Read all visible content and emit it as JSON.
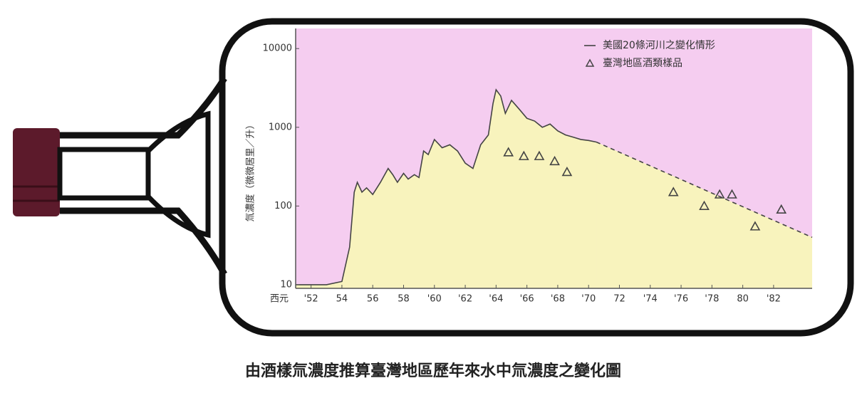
{
  "chart_data": {
    "type": "line",
    "title": "由酒樣氚濃度推算臺灣地區歷年來水中氚濃度之變化圖",
    "ylabel": "氚濃度（微微居里／升）",
    "xlabel": "西元",
    "xlim": [
      1951,
      1984.5
    ],
    "ylim": [
      9,
      18000
    ],
    "log_y": true,
    "xticks": [
      {
        "value": 1952,
        "label": "'52"
      },
      {
        "value": 1954,
        "label": "54"
      },
      {
        "value": 1956,
        "label": "56"
      },
      {
        "value": 1958,
        "label": "58"
      },
      {
        "value": 1960,
        "label": "'60"
      },
      {
        "value": 1962,
        "label": "'62"
      },
      {
        "value": 1964,
        "label": "'64"
      },
      {
        "value": 1966,
        "label": "'66"
      },
      {
        "value": 1968,
        "label": "'68"
      },
      {
        "value": 1970,
        "label": "'70"
      },
      {
        "value": 1972,
        "label": "72"
      },
      {
        "value": 1974,
        "label": "'74"
      },
      {
        "value": 1976,
        "label": "'76"
      },
      {
        "value": 1978,
        "label": "'78"
      },
      {
        "value": 1980,
        "label": "80"
      },
      {
        "value": 1982,
        "label": "'82"
      }
    ],
    "yticks": [
      10,
      100,
      1000,
      10000
    ],
    "plot_color": "#f5cdf0",
    "area_color": "#f8f3bd",
    "legend": "upper right",
    "series": [
      {
        "name": "美國20條河川之變化情形",
        "color": "#444444",
        "x": [
          1951,
          1953,
          1954,
          1954.5,
          1954.8,
          1955,
          1955.3,
          1955.6,
          1956,
          1956.5,
          1957,
          1957.3,
          1957.6,
          1958,
          1958.3,
          1958.7,
          1959,
          1959.3,
          1959.6,
          1960,
          1960.5,
          1961,
          1961.5,
          1962,
          1962.5,
          1963,
          1963.5,
          1963.8,
          1964,
          1964.3,
          1964.6,
          1965,
          1965.5,
          1966,
          1966.5,
          1967,
          1967.5,
          1968,
          1968.5,
          1969,
          1969.5,
          1970,
          1970.5
        ],
        "values": [
          10,
          10,
          11,
          30,
          150,
          200,
          150,
          170,
          140,
          200,
          300,
          250,
          200,
          260,
          220,
          250,
          230,
          500,
          450,
          700,
          550,
          600,
          500,
          350,
          300,
          600,
          800,
          2000,
          3000,
          2500,
          1500,
          2200,
          1700,
          1300,
          1200,
          1000,
          1100,
          900,
          800,
          750,
          700,
          680,
          650
        ]
      },
      {
        "color": "#444444",
        "style": "dashed",
        "x": [
          1970.5,
          1984.5
        ],
        "values": [
          650,
          40
        ]
      },
      {
        "name": "臺灣地區酒類樣品",
        "color": "#444444",
        "type": "scatter",
        "marker": "triangle",
        "x": [
          1964.8,
          1965.8,
          1966.8,
          1967.8,
          1968.6,
          1975.5,
          1977.5,
          1978.5,
          1979.3,
          1980.8,
          1982.5
        ],
        "values": [
          480,
          430,
          430,
          370,
          270,
          150,
          100,
          140,
          140,
          55,
          90
        ]
      }
    ]
  }
}
